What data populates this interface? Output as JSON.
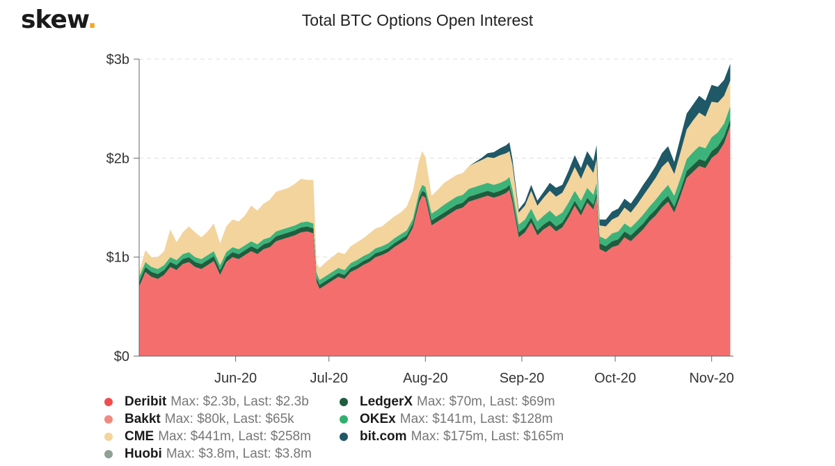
{
  "logo": {
    "text": "skew",
    "dot": "."
  },
  "chart_data": {
    "type": "area",
    "stacked": true,
    "title": "Total BTC Options Open Interest",
    "xlabel": "",
    "ylabel": "",
    "ylim": [
      0,
      3
    ],
    "y_unit": "billion USD",
    "yticks": [
      {
        "value": 0,
        "label": "$0"
      },
      {
        "value": 1,
        "label": "$1b"
      },
      {
        "value": 2,
        "label": "$2b"
      },
      {
        "value": 3,
        "label": "$3b"
      }
    ],
    "x_start": "2020-05-01",
    "x_end": "2020-11-08",
    "xticks": [
      {
        "date": "2020-06-01",
        "label": "Jun-20"
      },
      {
        "date": "2020-07-01",
        "label": "Jul-20"
      },
      {
        "date": "2020-08-01",
        "label": "Aug-20"
      },
      {
        "date": "2020-09-01",
        "label": "Sep-20"
      },
      {
        "date": "2020-10-01",
        "label": "Oct-20"
      },
      {
        "date": "2020-11-01",
        "label": "Nov-20"
      }
    ],
    "grid": "horizontal dashed",
    "legend_position": "bottom",
    "x": [
      "2020-05-01",
      "2020-05-03",
      "2020-05-05",
      "2020-05-07",
      "2020-05-09",
      "2020-05-11",
      "2020-05-13",
      "2020-05-15",
      "2020-05-17",
      "2020-05-19",
      "2020-05-21",
      "2020-05-23",
      "2020-05-25",
      "2020-05-27",
      "2020-05-29",
      "2020-05-31",
      "2020-06-02",
      "2020-06-04",
      "2020-06-06",
      "2020-06-08",
      "2020-06-10",
      "2020-06-12",
      "2020-06-14",
      "2020-06-16",
      "2020-06-18",
      "2020-06-20",
      "2020-06-22",
      "2020-06-24",
      "2020-06-26",
      "2020-06-27",
      "2020-06-28",
      "2020-06-30",
      "2020-07-02",
      "2020-07-04",
      "2020-07-06",
      "2020-07-08",
      "2020-07-10",
      "2020-07-12",
      "2020-07-14",
      "2020-07-16",
      "2020-07-18",
      "2020-07-20",
      "2020-07-22",
      "2020-07-24",
      "2020-07-26",
      "2020-07-28",
      "2020-07-30",
      "2020-07-31",
      "2020-08-01",
      "2020-08-03",
      "2020-08-05",
      "2020-08-07",
      "2020-08-09",
      "2020-08-11",
      "2020-08-13",
      "2020-08-15",
      "2020-08-17",
      "2020-08-19",
      "2020-08-21",
      "2020-08-23",
      "2020-08-25",
      "2020-08-27",
      "2020-08-28",
      "2020-08-29",
      "2020-08-31",
      "2020-09-02",
      "2020-09-04",
      "2020-09-06",
      "2020-09-08",
      "2020-09-10",
      "2020-09-12",
      "2020-09-14",
      "2020-09-16",
      "2020-09-18",
      "2020-09-20",
      "2020-09-22",
      "2020-09-24",
      "2020-09-25",
      "2020-09-26",
      "2020-09-28",
      "2020-09-30",
      "2020-10-02",
      "2020-10-04",
      "2020-10-06",
      "2020-10-08",
      "2020-10-10",
      "2020-10-12",
      "2020-10-14",
      "2020-10-16",
      "2020-10-18",
      "2020-10-20",
      "2020-10-22",
      "2020-10-24",
      "2020-10-26",
      "2020-10-28",
      "2020-10-30",
      "2020-11-01",
      "2020-11-03",
      "2020-11-05",
      "2020-11-07"
    ],
    "series": [
      {
        "name": "Deribit",
        "color": "#f46e6e",
        "values": [
          0.7,
          0.85,
          0.8,
          0.78,
          0.82,
          0.9,
          0.87,
          0.93,
          0.95,
          0.9,
          0.88,
          0.92,
          0.96,
          0.82,
          0.95,
          1.0,
          0.98,
          1.02,
          1.06,
          1.03,
          1.08,
          1.1,
          1.16,
          1.18,
          1.2,
          1.22,
          1.25,
          1.26,
          1.24,
          0.75,
          0.68,
          0.72,
          0.76,
          0.8,
          0.78,
          0.85,
          0.88,
          0.92,
          0.95,
          1.0,
          1.02,
          1.05,
          1.1,
          1.14,
          1.18,
          1.3,
          1.55,
          1.62,
          1.6,
          1.32,
          1.36,
          1.4,
          1.44,
          1.48,
          1.5,
          1.56,
          1.58,
          1.6,
          1.62,
          1.6,
          1.62,
          1.65,
          1.68,
          1.55,
          1.2,
          1.25,
          1.35,
          1.22,
          1.28,
          1.32,
          1.26,
          1.3,
          1.4,
          1.52,
          1.42,
          1.55,
          1.48,
          1.6,
          1.08,
          1.05,
          1.1,
          1.12,
          1.2,
          1.16,
          1.22,
          1.28,
          1.36,
          1.42,
          1.5,
          1.56,
          1.45,
          1.62,
          1.8,
          1.86,
          1.92,
          1.9,
          2.0,
          2.05,
          2.15,
          2.32
        ]
      },
      {
        "name": "Bakkt",
        "color": "#f08a80",
        "values": [
          0,
          0,
          0,
          0,
          0,
          0,
          0,
          0,
          0,
          0,
          0,
          0,
          0,
          0,
          0,
          0,
          0,
          0,
          0,
          0,
          0,
          0,
          0,
          0,
          0,
          0,
          0,
          0,
          0,
          0,
          0,
          0,
          0,
          0,
          0,
          0,
          0,
          0,
          0,
          0,
          0,
          0,
          0,
          0,
          0,
          0,
          0,
          0,
          0,
          0,
          0,
          0,
          0,
          0,
          0,
          0,
          0,
          0,
          0,
          0,
          0,
          0,
          0,
          0,
          0,
          0,
          0,
          0,
          0,
          0,
          0,
          0,
          0,
          0,
          0,
          0,
          0,
          0,
          0,
          0,
          0,
          0,
          0,
          0,
          0,
          0,
          0,
          0,
          0,
          0,
          0,
          0,
          0,
          0,
          0,
          0,
          0,
          0,
          0,
          7e-05
        ]
      },
      {
        "name": "Huobi",
        "color": "#8fa195",
        "values": [
          0,
          0,
          0,
          0,
          0,
          0,
          0,
          0,
          0,
          0,
          0,
          0,
          0,
          0,
          0,
          0,
          0,
          0,
          0,
          0,
          0,
          0,
          0,
          0,
          0,
          0,
          0,
          0,
          0,
          0,
          0,
          0,
          0,
          0,
          0,
          0,
          0,
          0,
          0,
          0,
          0,
          0,
          0,
          0,
          0,
          0,
          0,
          0,
          0,
          0,
          0,
          0,
          0,
          0,
          0,
          0,
          0,
          0,
          0,
          0,
          0,
          0,
          0,
          0,
          0,
          0,
          0,
          0,
          0,
          0,
          0,
          0,
          0,
          0,
          0,
          0,
          0,
          0,
          0,
          0,
          0,
          0,
          0,
          0,
          0,
          0,
          0,
          0,
          0,
          0,
          0,
          0,
          0,
          0,
          0,
          0,
          0,
          0,
          0,
          0.0038
        ]
      },
      {
        "name": "LedgerX",
        "color": "#1e5e3e",
        "values": [
          0.05,
          0.05,
          0.05,
          0.05,
          0.05,
          0.05,
          0.05,
          0.05,
          0.05,
          0.05,
          0.05,
          0.05,
          0.05,
          0.05,
          0.05,
          0.05,
          0.05,
          0.05,
          0.05,
          0.05,
          0.05,
          0.05,
          0.05,
          0.05,
          0.05,
          0.05,
          0.05,
          0.05,
          0.05,
          0.04,
          0.04,
          0.04,
          0.04,
          0.04,
          0.04,
          0.04,
          0.04,
          0.04,
          0.04,
          0.04,
          0.04,
          0.04,
          0.04,
          0.04,
          0.04,
          0.04,
          0.05,
          0.05,
          0.05,
          0.05,
          0.05,
          0.05,
          0.05,
          0.05,
          0.05,
          0.05,
          0.05,
          0.05,
          0.05,
          0.05,
          0.05,
          0.05,
          0.05,
          0.05,
          0.05,
          0.05,
          0.05,
          0.05,
          0.05,
          0.05,
          0.05,
          0.05,
          0.05,
          0.05,
          0.05,
          0.05,
          0.05,
          0.05,
          0.06,
          0.06,
          0.06,
          0.06,
          0.06,
          0.06,
          0.06,
          0.06,
          0.06,
          0.06,
          0.06,
          0.06,
          0.06,
          0.06,
          0.07,
          0.07,
          0.07,
          0.07,
          0.07,
          0.07,
          0.07,
          0.07
        ]
      },
      {
        "name": "OKEx",
        "color": "#3db37a",
        "values": [
          0.05,
          0.05,
          0.05,
          0.05,
          0.05,
          0.05,
          0.05,
          0.05,
          0.05,
          0.05,
          0.05,
          0.05,
          0.05,
          0.05,
          0.05,
          0.05,
          0.05,
          0.05,
          0.05,
          0.05,
          0.05,
          0.05,
          0.05,
          0.05,
          0.05,
          0.05,
          0.05,
          0.05,
          0.05,
          0.05,
          0.05,
          0.05,
          0.05,
          0.05,
          0.05,
          0.05,
          0.05,
          0.05,
          0.05,
          0.05,
          0.05,
          0.05,
          0.05,
          0.05,
          0.05,
          0.05,
          0.06,
          0.06,
          0.06,
          0.07,
          0.07,
          0.08,
          0.08,
          0.08,
          0.08,
          0.08,
          0.08,
          0.08,
          0.08,
          0.08,
          0.08,
          0.08,
          0.08,
          0.08,
          0.08,
          0.08,
          0.09,
          0.09,
          0.09,
          0.1,
          0.1,
          0.1,
          0.1,
          0.1,
          0.1,
          0.1,
          0.1,
          0.1,
          0.07,
          0.07,
          0.08,
          0.08,
          0.08,
          0.08,
          0.08,
          0.09,
          0.09,
          0.1,
          0.1,
          0.11,
          0.11,
          0.12,
          0.12,
          0.13,
          0.13,
          0.13,
          0.14,
          0.14,
          0.13,
          0.13
        ]
      },
      {
        "name": "CME",
        "color": "#f3d49c",
        "values": [
          0.05,
          0.12,
          0.1,
          0.12,
          0.14,
          0.28,
          0.18,
          0.22,
          0.26,
          0.25,
          0.22,
          0.24,
          0.28,
          0.22,
          0.26,
          0.28,
          0.28,
          0.3,
          0.36,
          0.34,
          0.36,
          0.38,
          0.4,
          0.4,
          0.4,
          0.42,
          0.44,
          0.42,
          0.44,
          0.1,
          0.12,
          0.14,
          0.15,
          0.16,
          0.16,
          0.17,
          0.18,
          0.18,
          0.2,
          0.2,
          0.2,
          0.22,
          0.22,
          0.22,
          0.24,
          0.28,
          0.32,
          0.34,
          0.3,
          0.18,
          0.2,
          0.22,
          0.22,
          0.22,
          0.22,
          0.23,
          0.24,
          0.25,
          0.26,
          0.27,
          0.28,
          0.27,
          0.26,
          0.25,
          0.12,
          0.14,
          0.18,
          0.16,
          0.18,
          0.2,
          0.2,
          0.2,
          0.22,
          0.24,
          0.22,
          0.24,
          0.22,
          0.24,
          0.11,
          0.13,
          0.14,
          0.15,
          0.16,
          0.15,
          0.17,
          0.19,
          0.2,
          0.22,
          0.25,
          0.24,
          0.22,
          0.26,
          0.3,
          0.32,
          0.34,
          0.32,
          0.36,
          0.3,
          0.28,
          0.26
        ]
      },
      {
        "name": "bit.com",
        "color": "#1f5866",
        "values": [
          0,
          0,
          0,
          0,
          0,
          0,
          0,
          0,
          0,
          0,
          0,
          0,
          0,
          0,
          0,
          0,
          0,
          0,
          0,
          0,
          0,
          0,
          0,
          0,
          0,
          0,
          0,
          0,
          0,
          0,
          0,
          0,
          0,
          0,
          0,
          0,
          0,
          0,
          0,
          0,
          0,
          0,
          0,
          0,
          0,
          0,
          0,
          0,
          0,
          0,
          0,
          0,
          0,
          0,
          0,
          0,
          0.01,
          0.02,
          0.04,
          0.06,
          0.07,
          0.08,
          0.09,
          0.06,
          0.03,
          0.04,
          0.06,
          0.05,
          0.06,
          0.08,
          0.09,
          0.08,
          0.1,
          0.12,
          0.11,
          0.13,
          0.12,
          0.14,
          0.06,
          0.07,
          0.08,
          0.08,
          0.09,
          0.09,
          0.1,
          0.11,
          0.11,
          0.12,
          0.14,
          0.15,
          0.12,
          0.15,
          0.16,
          0.16,
          0.17,
          0.16,
          0.17,
          0.16,
          0.16,
          0.17
        ]
      }
    ]
  },
  "legend": [
    {
      "name": "Deribit",
      "stats": "Max: $2.3b, Last: $2.3b",
      "color": "#f04e4e"
    },
    {
      "name": "LedgerX",
      "stats": "Max: $70m, Last: $69m",
      "color": "#1e5e3e"
    },
    {
      "name": "Bakkt",
      "stats": "Max: $80k, Last: $65k",
      "color": "#f08a80"
    },
    {
      "name": "OKEx",
      "stats": "Max: $141m, Last: $128m",
      "color": "#2fb06f"
    },
    {
      "name": "CME",
      "stats": "Max: $441m, Last: $258m",
      "color": "#f3d49c"
    },
    {
      "name": "bit.com",
      "stats": "Max: $175m, Last: $165m",
      "color": "#1f5866"
    },
    {
      "name": "Huobi",
      "stats": "Max: $3.8m, Last: $3.8m",
      "color": "#8fa195"
    }
  ]
}
